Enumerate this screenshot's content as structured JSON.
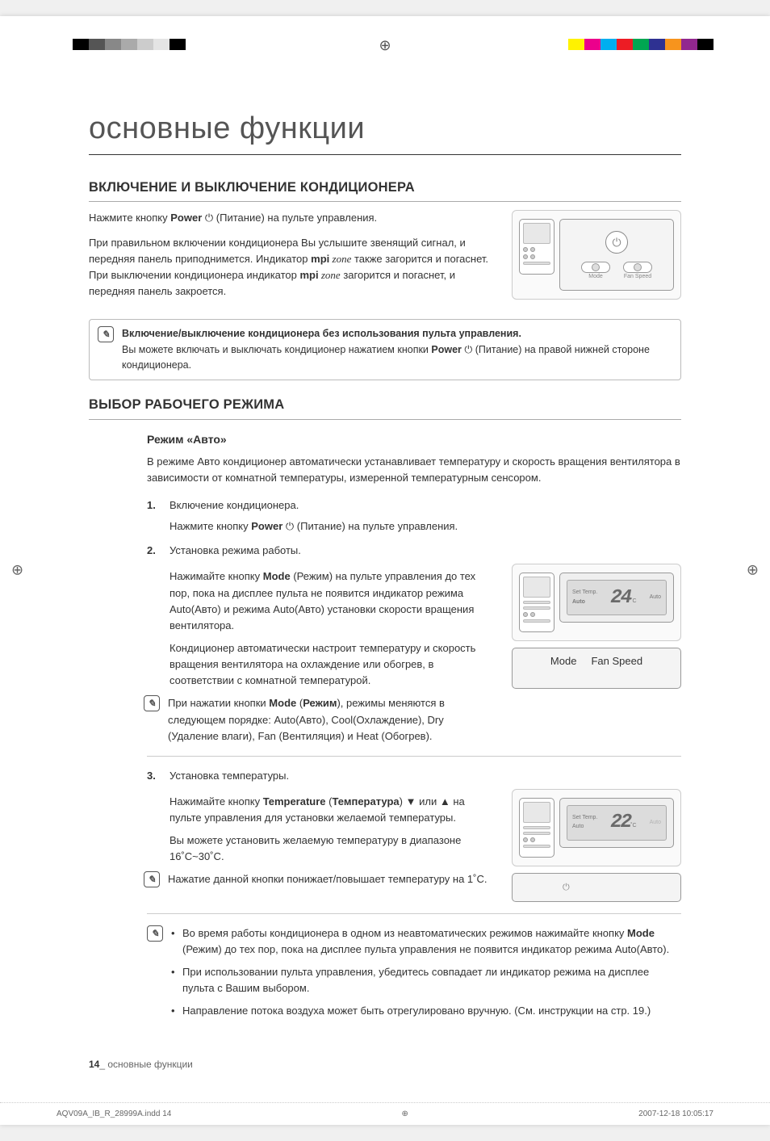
{
  "colorbar_left": [
    "#ffffff",
    "#000000",
    "#555555",
    "#888888",
    "#aaaaaa",
    "#cccccc",
    "#e4e4e4",
    "#000000"
  ],
  "colorbar_right": [
    "#fff200",
    "#ec008c",
    "#00aeef",
    "#ed1c24",
    "#00a651",
    "#2e3192",
    "#f7941d",
    "#92278f",
    "#000000"
  ],
  "main_title": "основные функции",
  "section1_title": "ВКЛЮЧЕНИЕ И ВЫКЛЮЧЕНИЕ КОНДИЦИОНЕРА",
  "s1_p1_a": "Нажмите кнопку ",
  "s1_p1_b": "Power",
  "s1_p1_c": " (Питание) на пульте управления.",
  "s1_p2_a": "При правильном включении кондиционера Вы услышите звенящий сигнал, и передняя панель приподнимется. Индикатор ",
  "s1_p2_mpi": "mpi",
  "s1_p2_zone": " zone",
  "s1_p2_b": " также загорится и погаснет.",
  "s1_p3_a": "При выключении кондиционера индикатор ",
  "s1_p3_b": " загорится и погаснет, и передняя панель закроется.",
  "note1_title": "Включение/выключение кондиционера без использования пульта управления.",
  "note1_body_a": "Вы можете включать и выключать кондиционер нажатием кнопки ",
  "note1_body_b": "Power",
  "note1_body_c": " (Питание) на правой нижней стороне кондиционера.",
  "section2_title": "ВЫБОР РАБОЧЕГО РЕЖИМА",
  "sub_auto_title": "Режим «Авто»",
  "auto_intro": "В режиме Авто кондиционер автоматически устанавливает температуру и скорость вращения вентилятора в зависимости от комнатной температуры, измеренной температурным сенсором.",
  "step1_title": "Включение кондиционера.",
  "step1_body_a": "Нажмите кнопку ",
  "step1_body_b": "Power",
  "step1_body_c": " (Питание) на пульте управления.",
  "step2_title": "Установка режима работы.",
  "step2_p1_a": "Нажимайте кнопку ",
  "step2_p1_b": "Mode",
  "step2_p1_c": " (Режим) на пульте управления до тех пор, пока на дисплее пульта не появится индикатор режима Auto(Авто) и режима Auto(Авто) установки скорости вращения вентилятора.",
  "step2_p2": "Кондиционер автоматически настроит температуру и скорость вращения вентилятора на охлаждение или обогрев, в соответствии с комнатной температурой.",
  "step2_note_a": "При нажатии кнопки ",
  "step2_note_b": "Mode",
  "step2_note_c": " (",
  "step2_note_d": "Режим",
  "step2_note_e": "), режимы меняются в следующем порядке: Auto(Авто), Cool(Охлаждение), Dry (Удаление влаги), Fan (Вентиляция) и Heat (Обогрев).",
  "step3_title": "Установка температуры.",
  "step3_p1_a": "Нажимайте кнопку ",
  "step3_p1_b": "Temperature",
  "step3_p1_c": " (",
  "step3_p1_d": "Температура",
  "step3_p1_e": ") ",
  "step3_p1_f": " или ",
  "step3_p1_g": " на пульте управления для установки желаемой температуры.",
  "step3_p2": "Вы можете установить желаемую температуру в диапазоне 16˚С~30˚С.",
  "step3_note": "Нажатие данной кнопки понижает/повышает температуру на 1˚С.",
  "final_b1_a": "Во время работы кондиционера в одном из неавтоматических режимов нажимайте кнопку ",
  "final_b1_b": "Mode",
  "final_b1_c": " (Режим) до тех пор, пока на дисплее пульта управления не появится индикатор режима Auto(Авто).",
  "final_b2": "При использовании пульта управления, убедитесь совпадает ли индикатор режима на дисплее пульта с Вашим выбором.",
  "final_b3": "Направление потока воздуха может быть отрегулировано вручную. (См. инструкции на стр. 19.)",
  "page_num": "14",
  "page_label": "_ основные функции",
  "footer_file": "AQV09A_IB_R_28999A.indd   14",
  "footer_date": "2007-12-18   10:05:17",
  "fig_labels": {
    "mode": "Mode",
    "fanspeed": "Fan Speed",
    "settemp": "Set Temp.",
    "auto": "Auto",
    "temp24": "24",
    "temp22": "22",
    "degc": "˚C"
  }
}
